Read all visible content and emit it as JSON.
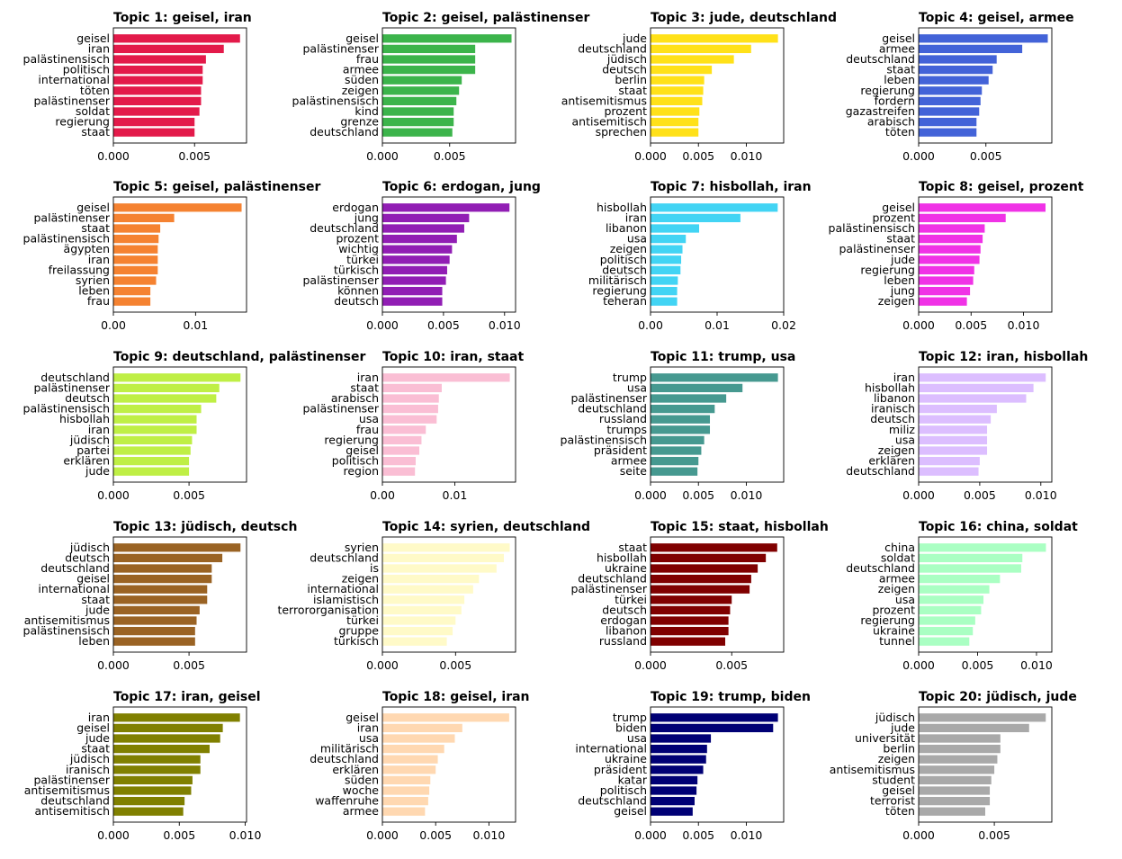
{
  "chart_data": [
    {
      "type": "bar",
      "title": "Topic 1: geisel, iran",
      "color": "#e31a4a",
      "xlim": [
        0,
        0.0082
      ],
      "xticks": [
        "0.000",
        "0.005"
      ],
      "categories": [
        "geisel",
        "iran",
        "palästinensisch",
        "politisch",
        "international",
        "töten",
        "palästinenser",
        "soldat",
        "regierung",
        "staat"
      ],
      "values": [
        0.0078,
        0.0068,
        0.0057,
        0.0055,
        0.0055,
        0.0054,
        0.0054,
        0.0053,
        0.005,
        0.005
      ]
    },
    {
      "type": "bar",
      "title": "Topic 2: geisel, palästinenser",
      "color": "#3cb44b",
      "xlim": [
        0,
        0.0099
      ],
      "xticks": [
        "0.000",
        "0.005"
      ],
      "categories": [
        "geisel",
        "palästinenser",
        "frau",
        "armee",
        "süden",
        "zeigen",
        "palästinensisch",
        "kind",
        "grenze",
        "deutschland"
      ],
      "values": [
        0.0096,
        0.0069,
        0.0069,
        0.0069,
        0.0059,
        0.0057,
        0.0055,
        0.0053,
        0.0053,
        0.0052
      ]
    },
    {
      "type": "bar",
      "title": "Topic 3: jude, deutschland",
      "color": "#ffe119",
      "xlim": [
        0,
        0.0139
      ],
      "xticks": [
        "0.000",
        "0.005",
        "0.010"
      ],
      "categories": [
        "jude",
        "deutschland",
        "jüdisch",
        "deutsch",
        "berlin",
        "staat",
        "antisemitismus",
        "prozent",
        "antisemitisch",
        "sprechen"
      ],
      "values": [
        0.0133,
        0.0105,
        0.0087,
        0.0064,
        0.0056,
        0.0055,
        0.0054,
        0.0051,
        0.005,
        0.005
      ]
    },
    {
      "type": "bar",
      "title": "Topic 4: geisel, armee",
      "color": "#4363d8",
      "xlim": [
        0,
        0.0099
      ],
      "xticks": [
        "0.000",
        "0.005"
      ],
      "categories": [
        "geisel",
        "armee",
        "deutschland",
        "staat",
        "leben",
        "regierung",
        "fordern",
        "gazastreifen",
        "arabisch",
        "töten"
      ],
      "values": [
        0.0096,
        0.0077,
        0.0058,
        0.0055,
        0.0052,
        0.0047,
        0.0046,
        0.0045,
        0.0043,
        0.0043
      ]
    },
    {
      "type": "bar",
      "title": "Topic 5: geisel, palästinenser",
      "color": "#f58231",
      "xlim": [
        0,
        0.0162
      ],
      "xticks": [
        "0.00",
        "0.01"
      ],
      "categories": [
        "geisel",
        "palästinenser",
        "staat",
        "palästinensisch",
        "ägypten",
        "iran",
        "freilassung",
        "syrien",
        "leben",
        "frau"
      ],
      "values": [
        0.0156,
        0.0074,
        0.0057,
        0.0055,
        0.0054,
        0.0054,
        0.0054,
        0.0052,
        0.0045,
        0.0045
      ]
    },
    {
      "type": "bar",
      "title": "Topic 6: erdogan, jung",
      "color": "#911eb4",
      "xlim": [
        0,
        0.0109
      ],
      "xticks": [
        "0.000",
        "0.005",
        "0.010"
      ],
      "categories": [
        "erdogan",
        "jung",
        "deutschland",
        "prozent",
        "wichtig",
        "türkei",
        "türkisch",
        "palästinenser",
        "können",
        "deutsch"
      ],
      "values": [
        0.0104,
        0.0071,
        0.0067,
        0.0061,
        0.0057,
        0.0055,
        0.0053,
        0.0052,
        0.0049,
        0.0049
      ]
    },
    {
      "type": "bar",
      "title": "Topic 7: hisbollah, iran",
      "color": "#42d4f4",
      "xlim": [
        0,
        0.02
      ],
      "xticks": [
        "0.00",
        "0.01",
        "0.02"
      ],
      "categories": [
        "hisbollah",
        "iran",
        "libanon",
        "usa",
        "zeigen",
        "politisch",
        "deutsch",
        "militärisch",
        "regierung",
        "teheran"
      ],
      "values": [
        0.0191,
        0.0135,
        0.0073,
        0.0053,
        0.0048,
        0.0046,
        0.0045,
        0.0041,
        0.004,
        0.004
      ]
    },
    {
      "type": "bar",
      "title": "Topic 8: geisel, prozent",
      "color": "#f032e6",
      "xlim": [
        0,
        0.0127
      ],
      "xticks": [
        "0.000",
        "0.005",
        "0.010"
      ],
      "categories": [
        "geisel",
        "prozent",
        "palästinensisch",
        "staat",
        "palästinenser",
        "jude",
        "regierung",
        "leben",
        "jung",
        "zeigen"
      ],
      "values": [
        0.0121,
        0.0083,
        0.0063,
        0.0061,
        0.0059,
        0.0058,
        0.0053,
        0.0052,
        0.0049,
        0.0046
      ]
    },
    {
      "type": "bar",
      "title": "Topic 9: deutschland, palästinenser",
      "color": "#bfef45",
      "xlim": [
        0,
        0.0088
      ],
      "xticks": [
        "0.000",
        "0.005"
      ],
      "categories": [
        "deutschland",
        "palästinenser",
        "deutsch",
        "palästinensisch",
        "hisbollah",
        "iran",
        "jüdisch",
        "partei",
        "erklären",
        "jude"
      ],
      "values": [
        0.0084,
        0.007,
        0.0068,
        0.0058,
        0.0055,
        0.0055,
        0.0052,
        0.0051,
        0.005,
        0.005
      ]
    },
    {
      "type": "bar",
      "title": "Topic 10: iran, staat",
      "color": "#fabed4",
      "xlim": [
        0,
        0.0184
      ],
      "xticks": [
        "0.00",
        "0.01"
      ],
      "categories": [
        "iran",
        "staat",
        "arabisch",
        "palästinenser",
        "usa",
        "frau",
        "regierung",
        "geisel",
        "politisch",
        "region"
      ],
      "values": [
        0.0176,
        0.0082,
        0.0078,
        0.0077,
        0.0075,
        0.006,
        0.0054,
        0.0051,
        0.0046,
        0.0045
      ]
    },
    {
      "type": "bar",
      "title": "Topic 11: trump, usa",
      "color": "#469990",
      "xlim": [
        0,
        0.0139
      ],
      "xticks": [
        "0.000",
        "0.005",
        "0.010"
      ],
      "categories": [
        "trump",
        "usa",
        "palästinenser",
        "deutschland",
        "russland",
        "trumps",
        "palästinensisch",
        "präsident",
        "armee",
        "seite"
      ],
      "values": [
        0.0133,
        0.0096,
        0.0079,
        0.0067,
        0.0062,
        0.0062,
        0.0056,
        0.0053,
        0.005,
        0.0049
      ]
    },
    {
      "type": "bar",
      "title": "Topic 12: iran, hisbollah",
      "color": "#dcbeff",
      "xlim": [
        0,
        0.0109
      ],
      "xticks": [
        "0.000",
        "0.005",
        "0.010"
      ],
      "categories": [
        "iran",
        "hisbollah",
        "libanon",
        "iranisch",
        "deutsch",
        "miliz",
        "usa",
        "zeigen",
        "erklären",
        "deutschland"
      ],
      "values": [
        0.0104,
        0.0094,
        0.0088,
        0.0064,
        0.0059,
        0.0056,
        0.0056,
        0.0056,
        0.005,
        0.0049
      ]
    },
    {
      "type": "bar",
      "title": "Topic 13: jüdisch, deutsch",
      "color": "#9a6324",
      "xlim": [
        0,
        0.0088
      ],
      "xticks": [
        "0.000",
        "0.005"
      ],
      "categories": [
        "jüdisch",
        "deutsch",
        "deutschland",
        "geisel",
        "international",
        "staat",
        "jude",
        "antisemitismus",
        "palästinensisch",
        "leben"
      ],
      "values": [
        0.0084,
        0.0072,
        0.0065,
        0.0065,
        0.0062,
        0.0062,
        0.0057,
        0.0055,
        0.0054,
        0.0054
      ]
    },
    {
      "type": "bar",
      "title": "Topic 14: syrien, deutschland",
      "color": "#fffac8",
      "xlim": [
        0,
        0.0091
      ],
      "xticks": [
        "0.000",
        "0.005"
      ],
      "categories": [
        "syrien",
        "deutschland",
        "is",
        "zeigen",
        "international",
        "islamistisch",
        "terrororganisation",
        "türkei",
        "gruppe",
        "türkisch"
      ],
      "values": [
        0.0087,
        0.0083,
        0.0078,
        0.0066,
        0.0062,
        0.0056,
        0.0054,
        0.005,
        0.0048,
        0.0044
      ]
    },
    {
      "type": "bar",
      "title": "Topic 15: staat, hisbollah",
      "color": "#800000",
      "xlim": [
        0,
        0.0082
      ],
      "xticks": [
        "0.000",
        "0.005"
      ],
      "categories": [
        "staat",
        "hisbollah",
        "ukraine",
        "deutschland",
        "palästinenser",
        "türkei",
        "deutsch",
        "erdogan",
        "libanon",
        "russland"
      ],
      "values": [
        0.0078,
        0.0071,
        0.0066,
        0.0062,
        0.0061,
        0.005,
        0.0049,
        0.0048,
        0.0048,
        0.0046
      ]
    },
    {
      "type": "bar",
      "title": "Topic 16: china, soldat",
      "color": "#aaffc3",
      "xlim": [
        0,
        0.0113
      ],
      "xticks": [
        "0.000",
        "0.005",
        "0.010"
      ],
      "categories": [
        "china",
        "soldat",
        "deutschland",
        "armee",
        "zeigen",
        "usa",
        "prozent",
        "regierung",
        "ukraine",
        "tunnel"
      ],
      "values": [
        0.0108,
        0.0088,
        0.0087,
        0.0069,
        0.006,
        0.0055,
        0.0053,
        0.0048,
        0.0046,
        0.0043
      ]
    },
    {
      "type": "bar",
      "title": "Topic 17: iran, geisel",
      "color": "#808000",
      "xlim": [
        0,
        0.0101
      ],
      "xticks": [
        "0.000",
        "0.005",
        "0.010"
      ],
      "categories": [
        "iran",
        "geisel",
        "jude",
        "staat",
        "jüdisch",
        "iranisch",
        "palästinenser",
        "antisemitismus",
        "deutschland",
        "antisemitisch"
      ],
      "values": [
        0.0096,
        0.0083,
        0.0081,
        0.0073,
        0.0066,
        0.0066,
        0.006,
        0.0059,
        0.0054,
        0.0053
      ]
    },
    {
      "type": "bar",
      "title": "Topic 18: geisel, iran",
      "color": "#ffd8b1",
      "xlim": [
        0,
        0.0125
      ],
      "xticks": [
        "0.000",
        "0.005",
        "0.010"
      ],
      "categories": [
        "geisel",
        "iran",
        "usa",
        "militärisch",
        "deutschland",
        "erklären",
        "süden",
        "woche",
        "waffenruhe",
        "armee"
      ],
      "values": [
        0.0119,
        0.0075,
        0.0068,
        0.0058,
        0.0052,
        0.005,
        0.0045,
        0.0044,
        0.0043,
        0.004
      ]
    },
    {
      "type": "bar",
      "title": "Topic 19: trump, biden",
      "color": "#000075",
      "xlim": [
        0,
        0.0139
      ],
      "xticks": [
        "0.000",
        "0.005",
        "0.010"
      ],
      "categories": [
        "trump",
        "biden",
        "usa",
        "international",
        "ukraine",
        "präsident",
        "katar",
        "politisch",
        "deutschland",
        "geisel"
      ],
      "values": [
        0.0133,
        0.0128,
        0.0063,
        0.0059,
        0.0058,
        0.0055,
        0.0049,
        0.0048,
        0.0046,
        0.0044
      ]
    },
    {
      "type": "bar",
      "title": "Topic 20: jüdisch, jude",
      "color": "#a9a9a9",
      "xlim": [
        0,
        0.0088
      ],
      "xticks": [
        "0.000",
        "0.005"
      ],
      "categories": [
        "jüdisch",
        "jude",
        "universität",
        "berlin",
        "zeigen",
        "antisemitismus",
        "student",
        "geisel",
        "terrorist",
        "töten"
      ],
      "values": [
        0.0084,
        0.0073,
        0.0054,
        0.0054,
        0.0052,
        0.005,
        0.0048,
        0.0047,
        0.0047,
        0.0044
      ]
    }
  ]
}
